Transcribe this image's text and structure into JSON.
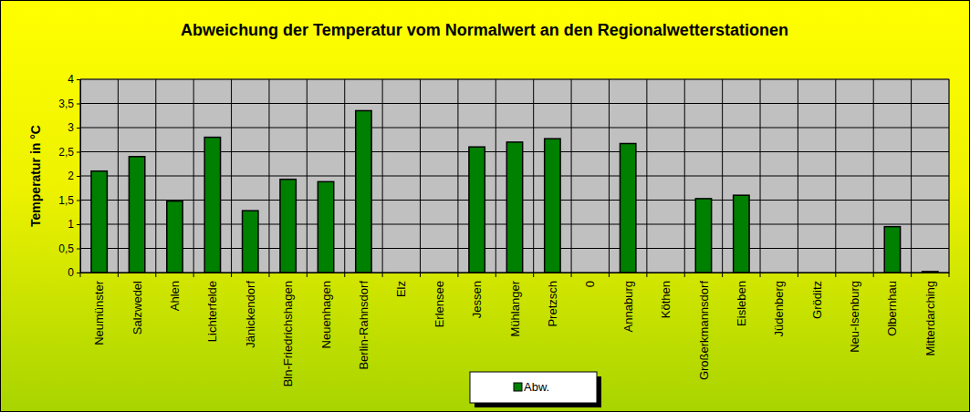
{
  "chart_data": {
    "type": "bar",
    "title": "Abweichung der Temperatur vom Normalwert an den Regionalwetterstationen",
    "y_label": "Temperatur in °C",
    "categories": [
      "Neumünster",
      "Salzwedel",
      "Ahlen",
      "Lichterfelde",
      "Jänickendorf",
      "Bln-Friedrichshagen",
      "Neuenhagen",
      "Berlin-Rahnsdorf",
      "Elz",
      "Erlensee",
      "Jessen",
      "Mühlanger",
      "Pretzsch",
      "0",
      "Annaburg",
      "Köthen",
      "Großerkmannsdorf",
      "Eisleben",
      "Jüdenberg",
      "Gröditz",
      "Neu-Isenburg",
      "Olbernhau",
      "Mitterdarching"
    ],
    "series": [
      {
        "name": "Abw.",
        "color": "#008000",
        "values": [
          2.1,
          2.4,
          1.48,
          2.8,
          1.28,
          1.93,
          1.88,
          3.35,
          null,
          null,
          2.6,
          2.7,
          2.77,
          null,
          2.67,
          null,
          1.53,
          1.6,
          null,
          null,
          null,
          0.95,
          0.02
        ]
      }
    ],
    "ylim": [
      0,
      4
    ],
    "yticks": [
      0,
      {
        "value": 0.5,
        "label": "0,5"
      },
      1,
      {
        "value": 1.5,
        "label": "1,5"
      },
      2,
      {
        "value": 2.5,
        "label": "2,5"
      },
      3,
      {
        "value": 3.5,
        "label": "3,5"
      },
      4
    ],
    "grid": true,
    "legend": "bottom"
  }
}
